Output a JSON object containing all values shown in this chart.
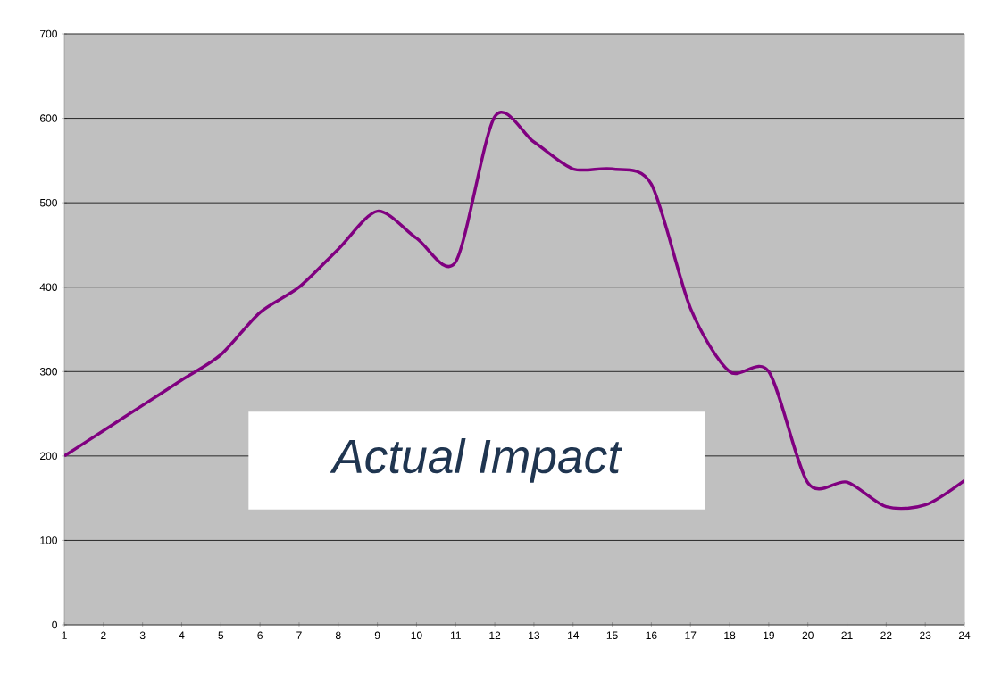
{
  "chart_data": {
    "type": "line",
    "x": [
      1,
      2,
      3,
      4,
      5,
      6,
      7,
      8,
      9,
      10,
      11,
      12,
      13,
      14,
      15,
      16,
      17,
      18,
      19,
      20,
      21,
      22,
      23,
      24
    ],
    "series": [
      {
        "color": "#800080",
        "values": [
          200,
          230,
          260,
          290,
          320,
          370,
          400,
          445,
          490,
          458,
          430,
          602,
          572,
          540,
          540,
          522,
          375,
          300,
          300,
          168,
          169,
          140,
          142,
          171
        ]
      }
    ],
    "xlim": [
      1,
      24
    ],
    "xticks": [
      1,
      2,
      3,
      4,
      5,
      6,
      7,
      8,
      9,
      10,
      11,
      12,
      13,
      14,
      15,
      16,
      17,
      18,
      19,
      20,
      21,
      22,
      23,
      24
    ],
    "ylim": [
      0,
      700
    ],
    "yticks": [
      0,
      100,
      200,
      300,
      400,
      500,
      600,
      700
    ],
    "grid": "y",
    "line_style": "solid",
    "annotations": [
      "Actual Impact"
    ]
  }
}
